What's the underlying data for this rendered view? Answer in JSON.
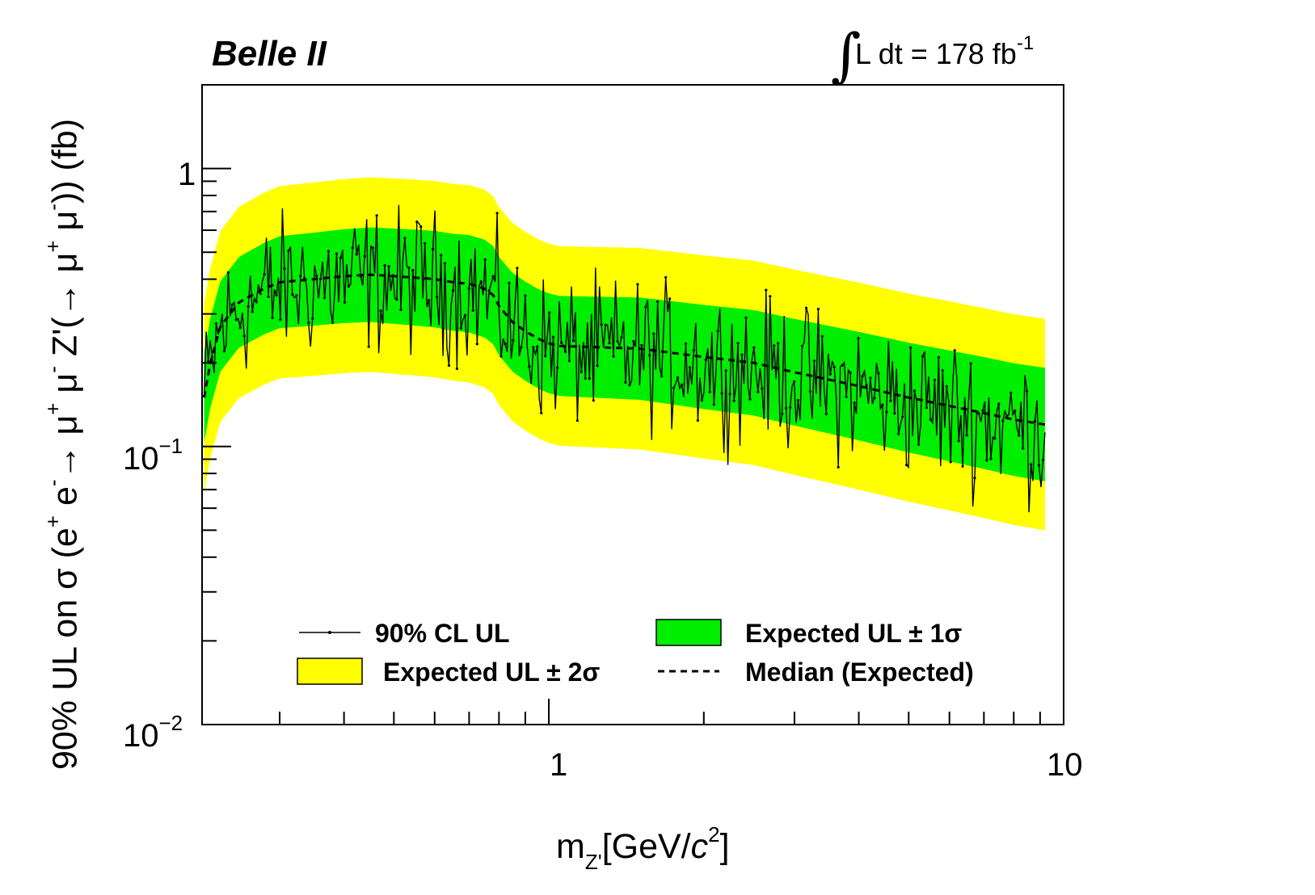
{
  "chart_data": {
    "type": "line",
    "brand": "Belle II",
    "luminosity": {
      "prefix": "L dt = 178 fb",
      "exponent": "-1"
    },
    "ylabel": {
      "p1": "90% UL on σ (e",
      "s1": "+",
      "p2": " e",
      "s2": "-",
      "p3": "→ μ",
      "s3": "+",
      "p4": " μ",
      "s4": "-",
      "p5": " Z'(→ μ",
      "s5": "+",
      "p6": " μ",
      "s6": "-",
      "p7": ")) (fb)"
    },
    "xlabel": {
      "main": "m",
      "sub": "Z'",
      "rest": "[GeV/",
      "c": "c",
      "exp": "2",
      "end": "]"
    },
    "x_scale": "log",
    "y_scale": "log",
    "xlim": [
      0.212,
      10
    ],
    "ylim": [
      0.01,
      2.0
    ],
    "x_ticks": [
      {
        "value": 1,
        "label": "1"
      },
      {
        "value": 10,
        "label": "10"
      }
    ],
    "y_ticks": [
      {
        "value": 1,
        "base": "1",
        "exp": ""
      },
      {
        "value": 0.1,
        "base": "10",
        "exp": "−1"
      },
      {
        "value": 0.01,
        "base": "10",
        "exp": "−2"
      }
    ],
    "x_range_data": [
      0.214,
      9.2
    ],
    "median_expected": {
      "x": [
        0.214,
        0.22,
        0.23,
        0.25,
        0.28,
        0.3,
        0.35,
        0.4,
        0.45,
        0.5,
        0.55,
        0.6,
        0.65,
        0.7,
        0.75,
        0.78,
        0.8,
        0.85,
        0.9,
        0.95,
        1.0,
        1.05,
        1.2,
        1.5,
        2.0,
        2.5,
        3.0,
        4.0,
        5.0,
        6.0,
        7.0,
        8.0,
        9.2
      ],
      "y": [
        0.15,
        0.2,
        0.27,
        0.33,
        0.37,
        0.39,
        0.4,
        0.41,
        0.415,
        0.41,
        0.405,
        0.4,
        0.39,
        0.385,
        0.37,
        0.35,
        0.32,
        0.28,
        0.26,
        0.245,
        0.235,
        0.23,
        0.228,
        0.225,
        0.21,
        0.2,
        0.185,
        0.165,
        0.15,
        0.14,
        0.132,
        0.125,
        0.12
      ]
    },
    "band_1sigma_factor": [
      1.45,
      1.6
    ],
    "band_2sigma_factor": [
      2.2,
      2.4
    ],
    "observed_fluctuation_lo": 0.4,
    "observed_fluctuation_hi": 2.3,
    "series": [
      {
        "name": "90% CL UL",
        "color": "#000000",
        "style": "solid-with-markers"
      },
      {
        "name": "Expected UL ± 1σ",
        "color": "#00ee00",
        "style": "band"
      },
      {
        "name": "Expected UL ± 2σ",
        "color": "#ffff00",
        "style": "band"
      },
      {
        "name": "Median (Expected)",
        "color": "#000000",
        "style": "dashed"
      }
    ],
    "legend": {
      "observed": "90% CL UL",
      "one_sigma": "Expected UL ± 1σ",
      "two_sigma": "Expected UL ± 2σ",
      "median": "Median (Expected)"
    },
    "legend_position": "bottom-center",
    "grid": false
  }
}
